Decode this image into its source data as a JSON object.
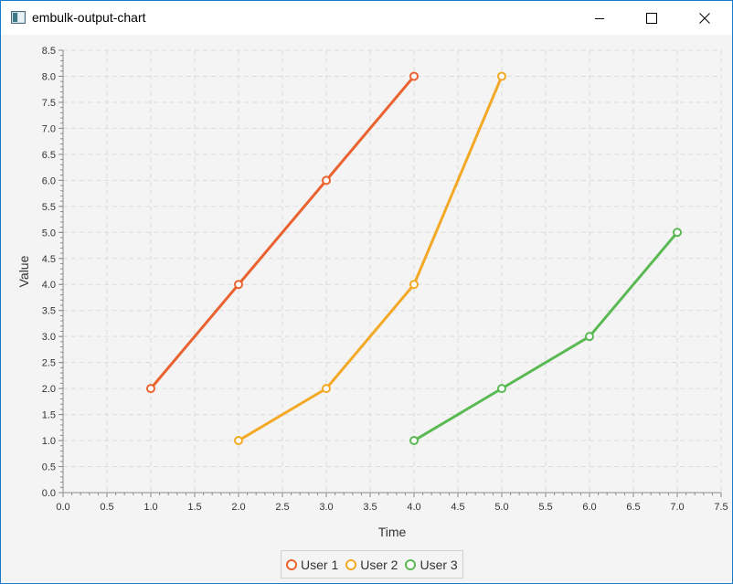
{
  "window": {
    "title": "embulk-output-chart",
    "buttons": {
      "minimize": "minimize-icon",
      "maximize": "maximize-icon",
      "close": "close-icon"
    }
  },
  "chart_data": {
    "type": "line",
    "xlabel": "Time",
    "ylabel": "Value",
    "xlim": [
      0,
      7.5
    ],
    "ylim": [
      0,
      8.5
    ],
    "xticks": [
      "0.0",
      "0.5",
      "1.0",
      "1.5",
      "2.0",
      "2.5",
      "3.0",
      "3.5",
      "4.0",
      "4.5",
      "5.0",
      "5.5",
      "6.0",
      "6.5",
      "7.0",
      "7.5"
    ],
    "yticks": [
      "0.0",
      "0.5",
      "1.0",
      "1.5",
      "2.0",
      "2.5",
      "3.0",
      "3.5",
      "4.0",
      "4.5",
      "5.0",
      "5.5",
      "6.0",
      "6.5",
      "7.0",
      "7.5",
      "8.0",
      "8.5"
    ],
    "grid": true,
    "legend_position": "bottom",
    "series": [
      {
        "name": "User 1",
        "color": "#e9622f",
        "x": [
          1,
          2,
          3,
          4
        ],
        "y": [
          2,
          4,
          6,
          8
        ]
      },
      {
        "name": "User 2",
        "color": "#f3a925",
        "x": [
          2,
          3,
          4,
          5
        ],
        "y": [
          1,
          2,
          4,
          8
        ]
      },
      {
        "name": "User 3",
        "color": "#5bb954",
        "x": [
          4,
          5,
          6,
          7
        ],
        "y": [
          1,
          2,
          3,
          5
        ]
      }
    ]
  }
}
